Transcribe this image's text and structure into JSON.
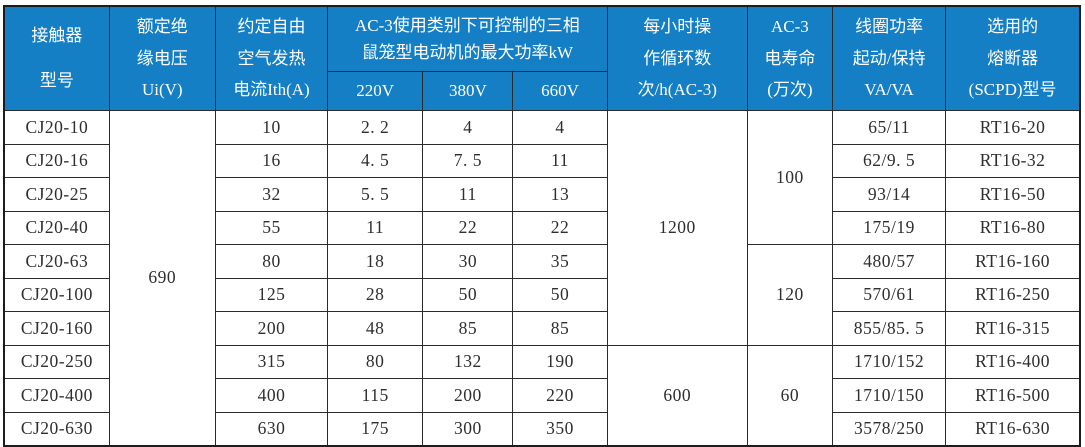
{
  "header": {
    "col_model": {
      "lines": [
        "接触器",
        "型号"
      ]
    },
    "col_ui": {
      "lines": [
        "额定绝",
        "缘电压",
        "Ui(V)"
      ]
    },
    "col_ith": {
      "lines": [
        "约定自由",
        "空气发热",
        "电流Ith(A)"
      ]
    },
    "group_ac3": {
      "lines": [
        "AC-3使用类别下可控制的三相",
        "鼠笼型电动机的最大功率kW"
      ]
    },
    "sub_220": "220V",
    "sub_380": "380V",
    "sub_660": "660V",
    "col_cycles": {
      "lines": [
        "每小时操",
        "作循环数",
        "次/h(AC-3)"
      ]
    },
    "col_life": {
      "lines": [
        "AC-3",
        "电寿命",
        "(万次)"
      ]
    },
    "col_coil": {
      "lines": [
        "线圈功率",
        "起动/保持",
        "VA/VA"
      ]
    },
    "col_fuse": {
      "lines": [
        "选用的",
        "熔断器",
        "(SCPD)型号"
      ]
    }
  },
  "merged": {
    "ui_all": "690",
    "cycles_rows1_7": "1200",
    "cycles_rows8_10": "600",
    "life_rows1_4": "100",
    "life_rows5_7": "120",
    "life_rows8_10": "60"
  },
  "rows": [
    {
      "model": "CJ20-10",
      "ith": "10",
      "kw220": "2. 2",
      "kw380": "4",
      "kw660": "4",
      "coil": "65/11",
      "fuse": "RT16-20"
    },
    {
      "model": "CJ20-16",
      "ith": "16",
      "kw220": "4. 5",
      "kw380": "7. 5",
      "kw660": "11",
      "coil": "62/9. 5",
      "fuse": "RT16-32"
    },
    {
      "model": "CJ20-25",
      "ith": "32",
      "kw220": "5. 5",
      "kw380": "11",
      "kw660": "13",
      "coil": "93/14",
      "fuse": "RT16-50"
    },
    {
      "model": "CJ20-40",
      "ith": "55",
      "kw220": "11",
      "kw380": "22",
      "kw660": "22",
      "coil": "175/19",
      "fuse": "RT16-80"
    },
    {
      "model": "CJ20-63",
      "ith": "80",
      "kw220": "18",
      "kw380": "30",
      "kw660": "35",
      "coil": "480/57",
      "fuse": "RT16-160"
    },
    {
      "model": "CJ20-100",
      "ith": "125",
      "kw220": "28",
      "kw380": "50",
      "kw660": "50",
      "coil": "570/61",
      "fuse": "RT16-250"
    },
    {
      "model": "CJ20-160",
      "ith": "200",
      "kw220": "48",
      "kw380": "85",
      "kw660": "85",
      "coil": "855/85. 5",
      "fuse": "RT16-315"
    },
    {
      "model": "CJ20-250",
      "ith": "315",
      "kw220": "80",
      "kw380": "132",
      "kw660": "190",
      "coil": "1710/152",
      "fuse": "RT16-400"
    },
    {
      "model": "CJ20-400",
      "ith": "400",
      "kw220": "115",
      "kw380": "200",
      "kw660": "220",
      "coil": "1710/150",
      "fuse": "RT16-500"
    },
    {
      "model": "CJ20-630",
      "ith": "630",
      "kw220": "175",
      "kw380": "300",
      "kw660": "350",
      "coil": "3578/250",
      "fuse": "RT16-630"
    }
  ],
  "colors": {
    "header_bg": "#147fc4",
    "header_text": "#ffffff",
    "grid_line": "#2b2b2b",
    "body_text": "#2e2e2e"
  }
}
